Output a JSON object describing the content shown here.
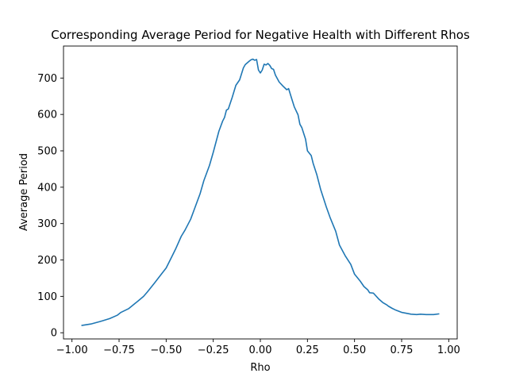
{
  "chart_data": {
    "type": "line",
    "title": "Corresponding Average Period for Negative Health with Different Rhos",
    "xlabel": "Rho",
    "ylabel": "Average Period",
    "xlim": [
      -1.045,
      1.045
    ],
    "ylim": [
      -17,
      788
    ],
    "xticks": [
      -1.0,
      -0.75,
      -0.5,
      -0.25,
      0.0,
      0.25,
      0.5,
      0.75,
      1.0
    ],
    "xtick_labels": [
      "−1.00",
      "−0.75",
      "−0.50",
      "−0.25",
      "0.00",
      "0.25",
      "0.50",
      "0.75",
      "1.00"
    ],
    "yticks": [
      0,
      100,
      200,
      300,
      400,
      500,
      600,
      700
    ],
    "ytick_labels": [
      "0",
      "100",
      "200",
      "300",
      "400",
      "500",
      "600",
      "700"
    ],
    "grid": false,
    "series": [
      {
        "color": "#1f77b4",
        "x": [
          -0.95,
          -0.9,
          -0.85,
          -0.8,
          -0.76,
          -0.74,
          -0.7,
          -0.65,
          -0.62,
          -0.6,
          -0.56,
          -0.53,
          -0.5,
          -0.47,
          -0.45,
          -0.42,
          -0.4,
          -0.37,
          -0.35,
          -0.32,
          -0.3,
          -0.27,
          -0.25,
          -0.22,
          -0.2,
          -0.19,
          -0.18,
          -0.17,
          -0.15,
          -0.13,
          -0.11,
          -0.09,
          -0.08,
          -0.06,
          -0.05,
          -0.04,
          -0.03,
          -0.02,
          -0.01,
          0.0,
          0.01,
          0.02,
          0.03,
          0.04,
          0.05,
          0.06,
          0.07,
          0.08,
          0.1,
          0.12,
          0.14,
          0.15,
          0.16,
          0.18,
          0.2,
          0.21,
          0.22,
          0.24,
          0.25,
          0.27,
          0.28,
          0.3,
          0.32,
          0.35,
          0.37,
          0.4,
          0.42,
          0.45,
          0.48,
          0.5,
          0.53,
          0.55,
          0.57,
          0.58,
          0.6,
          0.63,
          0.65,
          0.67,
          0.68,
          0.7,
          0.72,
          0.75,
          0.77,
          0.8,
          0.83,
          0.85,
          0.88,
          0.9,
          0.92,
          0.95
        ],
        "y": [
          20,
          24,
          31,
          39,
          48,
          56,
          66,
          87,
          100,
          112,
          138,
          158,
          178,
          209,
          230,
          265,
          282,
          312,
          340,
          382,
          418,
          460,
          496,
          554,
          582,
          592,
          612,
          615,
          646,
          680,
          695,
          728,
          737,
          746,
          750,
          752,
          749,
          751,
          722,
          714,
          722,
          738,
          736,
          740,
          735,
          726,
          724,
          708,
          689,
          678,
          668,
          671,
          654,
          621,
          599,
          573,
          564,
          532,
          500,
          487,
          466,
          434,
          394,
          346,
          317,
          279,
          241,
          212,
          188,
          161,
          142,
          127,
          118,
          110,
          109,
          92,
          83,
          77,
          73,
          67,
          62,
          56,
          54,
          51,
          50,
          51,
          50,
          50,
          50,
          52
        ]
      }
    ]
  }
}
